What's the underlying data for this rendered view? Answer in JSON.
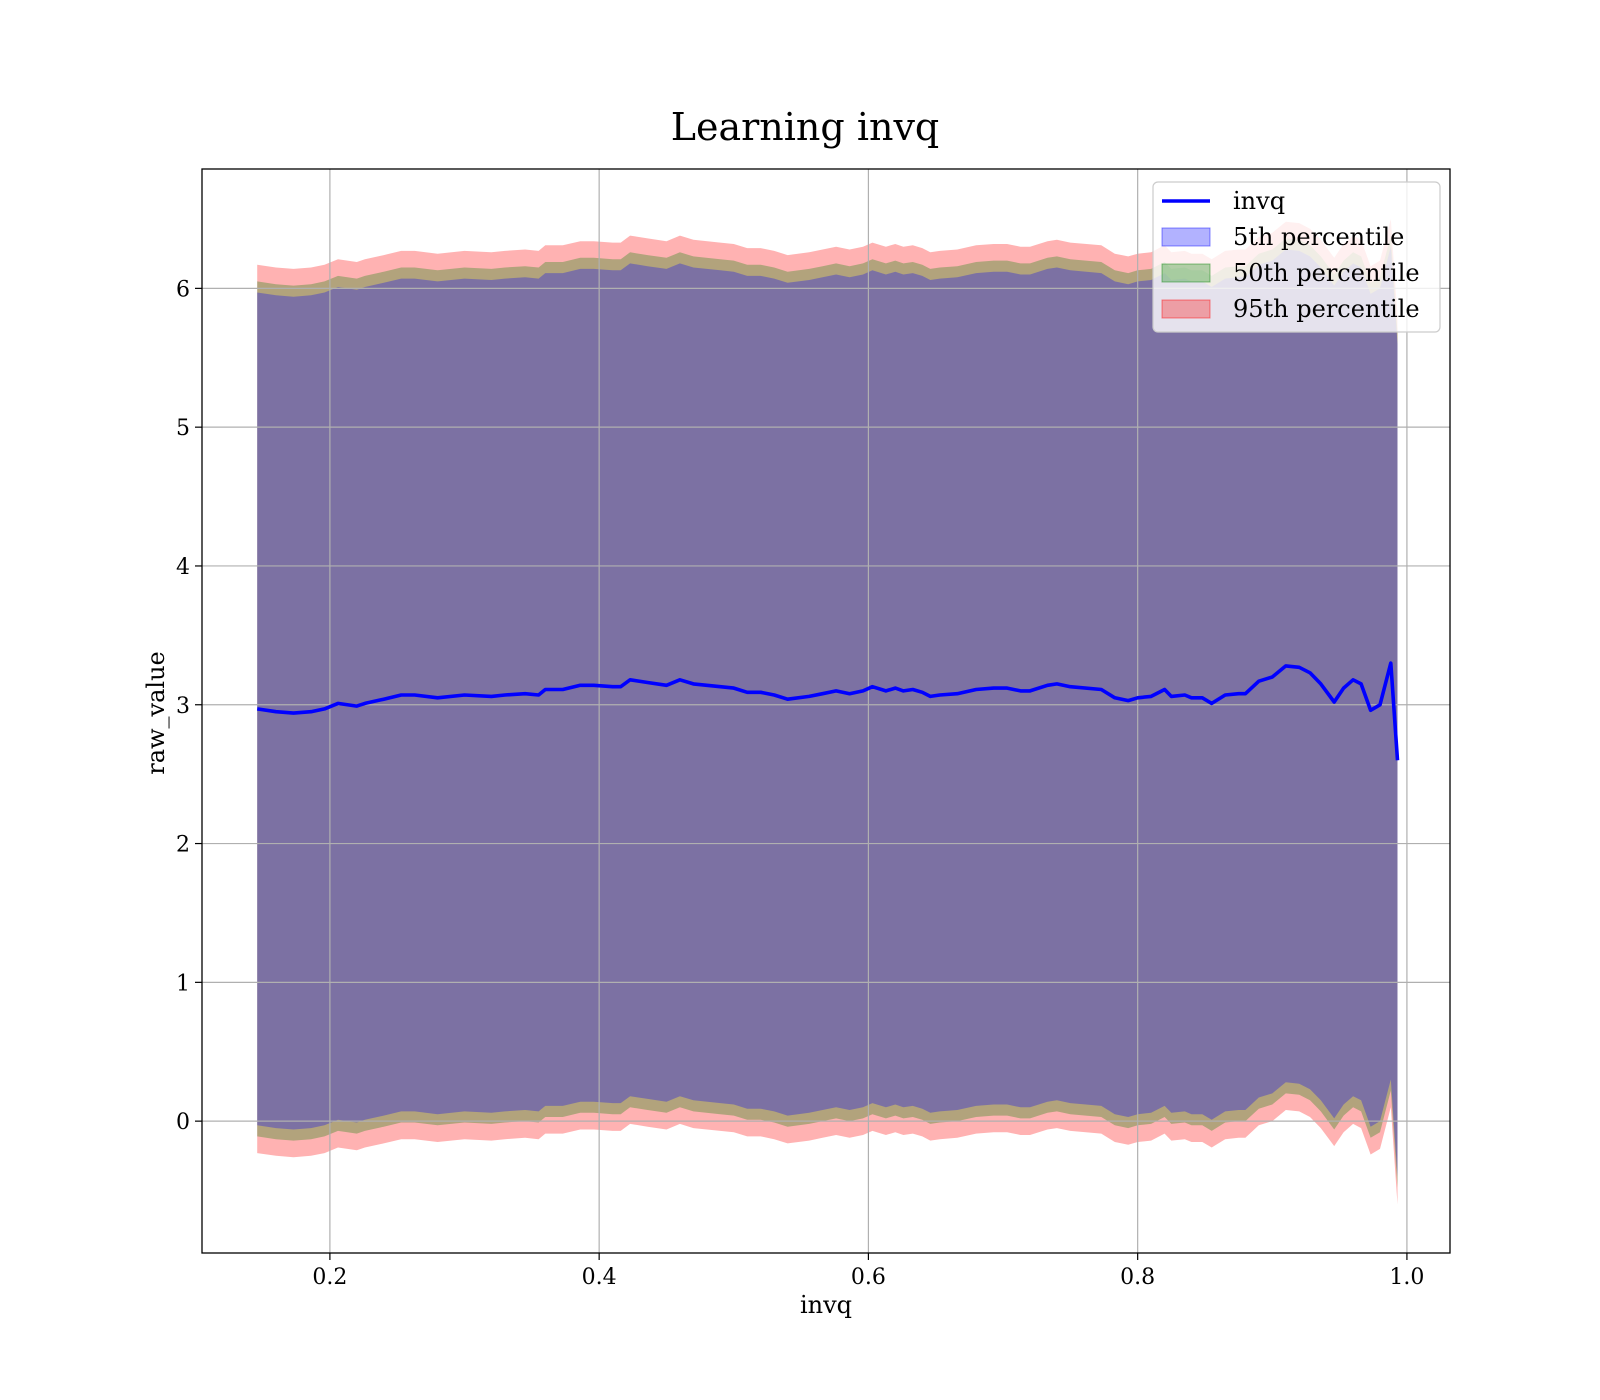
{
  "chart_data": {
    "type": "area",
    "title": "Learning invq",
    "xlabel": "invq",
    "ylabel": "raw_value",
    "xlim": [
      0.105,
      1.032
    ],
    "ylim": [
      -0.95,
      6.86
    ],
    "x_ticks": [
      0.2,
      0.4,
      0.6,
      0.8,
      1.0
    ],
    "x_tick_labels": [
      "0.2",
      "0.4",
      "0.6",
      "0.8",
      "1.0"
    ],
    "y_ticks": [
      0,
      1,
      2,
      3,
      4,
      5,
      6
    ],
    "y_tick_labels": [
      "0",
      "1",
      "2",
      "3",
      "4",
      "5",
      "6"
    ],
    "grid": true,
    "legend_position": "top-right",
    "x": [
      0.146,
      0.16,
      0.173,
      0.186,
      0.196,
      0.206,
      0.22,
      0.226,
      0.24,
      0.253,
      0.263,
      0.28,
      0.3,
      0.32,
      0.33,
      0.345,
      0.355,
      0.36,
      0.366,
      0.373,
      0.386,
      0.396,
      0.41,
      0.416,
      0.423,
      0.436,
      0.45,
      0.46,
      0.47,
      0.49,
      0.5,
      0.51,
      0.52,
      0.53,
      0.54,
      0.556,
      0.566,
      0.576,
      0.586,
      0.596,
      0.603,
      0.613,
      0.62,
      0.626,
      0.633,
      0.64,
      0.646,
      0.653,
      0.666,
      0.68,
      0.693,
      0.703,
      0.713,
      0.72,
      0.733,
      0.74,
      0.75,
      0.773,
      0.783,
      0.793,
      0.8,
      0.81,
      0.82,
      0.825,
      0.835,
      0.84,
      0.848,
      0.855,
      0.865,
      0.875,
      0.88,
      0.89,
      0.9,
      0.91,
      0.92,
      0.928,
      0.936,
      0.946,
      0.953,
      0.96,
      0.966,
      0.973,
      0.98,
      0.988,
      0.993
    ],
    "series": [
      {
        "name": "invq",
        "role": "line",
        "color": "#0000ff",
        "values": [
          2.97,
          2.95,
          2.94,
          2.95,
          2.97,
          3.01,
          2.99,
          3.01,
          3.04,
          3.07,
          3.07,
          3.05,
          3.07,
          3.06,
          3.07,
          3.08,
          3.07,
          3.11,
          3.11,
          3.11,
          3.14,
          3.14,
          3.13,
          3.13,
          3.18,
          3.16,
          3.14,
          3.18,
          3.15,
          3.13,
          3.12,
          3.09,
          3.09,
          3.07,
          3.04,
          3.06,
          3.08,
          3.1,
          3.08,
          3.1,
          3.13,
          3.1,
          3.12,
          3.1,
          3.11,
          3.09,
          3.06,
          3.07,
          3.08,
          3.11,
          3.12,
          3.12,
          3.1,
          3.1,
          3.14,
          3.15,
          3.13,
          3.11,
          3.05,
          3.03,
          3.05,
          3.06,
          3.11,
          3.06,
          3.07,
          3.05,
          3.05,
          3.01,
          3.07,
          3.08,
          3.08,
          3.17,
          3.2,
          3.28,
          3.27,
          3.23,
          3.15,
          3.02,
          3.12,
          3.18,
          3.15,
          2.96,
          3.0,
          3.3,
          2.6
        ]
      },
      {
        "name": "5th percentile",
        "role": "band",
        "color": "#0000ff",
        "opacity": 0.3,
        "upper_offset": 3.0,
        "lower_offset": 3.0
      },
      {
        "name": "50th percentile",
        "role": "band",
        "color": "#008000",
        "opacity": 0.3,
        "upper_offset": 3.08,
        "lower_offset": 3.08
      },
      {
        "name": "95th percentile",
        "role": "band",
        "color": "#ff0000",
        "opacity": 0.3,
        "upper_offset": 3.2,
        "lower_offset": 3.2
      }
    ]
  }
}
